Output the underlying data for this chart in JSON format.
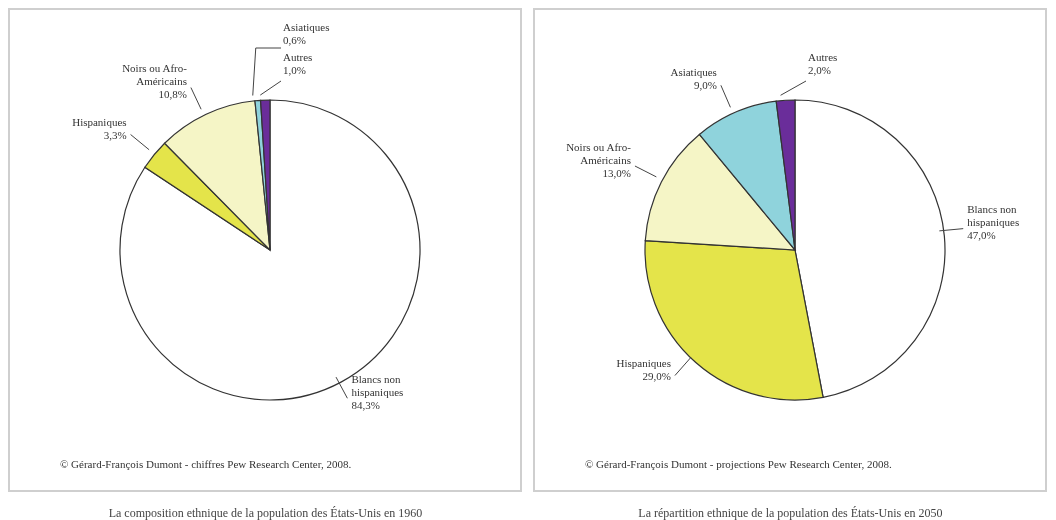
{
  "chart_data": [
    {
      "type": "pie",
      "title": "La composition ethnique de la population des États-Unis en 1960",
      "categories": [
        "Blancs non hispaniques",
        "Hispaniques",
        "Noirs ou Afro-Américains",
        "Asiatiques",
        "Autres"
      ],
      "values": [
        84.3,
        3.3,
        10.8,
        0.6,
        1.0
      ],
      "value_labels": [
        "84,3%",
        "3,3%",
        "10,8%",
        "0,6%",
        "1,0%"
      ],
      "colors": [
        "#ffffff",
        "#e4e44a",
        "#f5f5c6",
        "#8fd3dc",
        "#6a2d9a"
      ],
      "legend": false,
      "annotations": [
        "© Gérard-François Dumont - chiffres Pew Research Center, 2008."
      ]
    },
    {
      "type": "pie",
      "title": "La répartition ethnique de la population des États-Unis en 2050",
      "categories": [
        "Blancs non hispaniques",
        "Hispaniques",
        "Noirs ou Afro-Américains",
        "Asiatiques",
        "Autres"
      ],
      "values": [
        47.0,
        29.0,
        13.0,
        9.0,
        2.0
      ],
      "value_labels": [
        "47,0%",
        "29,0%",
        "13,0%",
        "9,0%",
        "2,0%"
      ],
      "colors": [
        "#ffffff",
        "#e4e44a",
        "#f5f5c6",
        "#8fd3dc",
        "#6a2d9a"
      ],
      "legend": false,
      "annotations": [
        "© Gérard-François Dumont - projections Pew Research Center, 2008."
      ]
    }
  ]
}
